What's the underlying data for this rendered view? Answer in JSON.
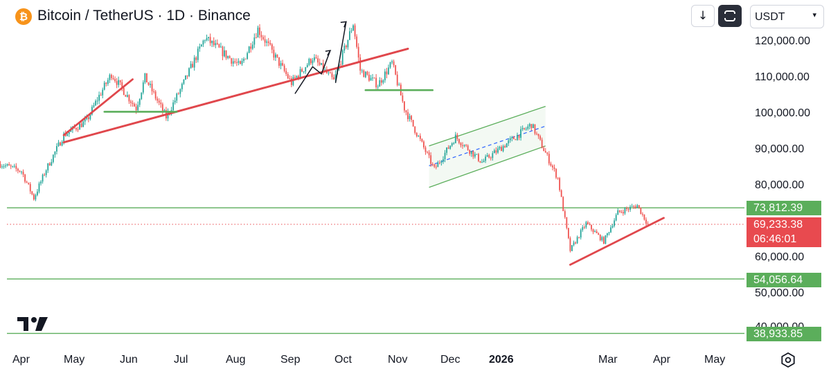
{
  "header": {
    "symbol_title": "Bitcoin / TetherUS · 1D · Binance",
    "logo_glyph": "₿",
    "download_icon": "↓",
    "currency": "USDT",
    "currency_arrow": "▾"
  },
  "price_axis": {
    "ticks": [
      "120,000.00",
      "110,000.00",
      "100,000.00",
      "90,000.00",
      "80,000.00",
      "60,000.00",
      "50,000.00"
    ],
    "hidden_tick": "40,000.00",
    "badges": {
      "resistance": "73,812.39",
      "support_1": "54,056.64",
      "support_2": "38,933.85"
    },
    "current_price": "69,233.38",
    "countdown": "06:46:01"
  },
  "time_axis": {
    "labels": [
      "Apr",
      "May",
      "Jun",
      "Jul",
      "Aug",
      "Sep",
      "Oct",
      "Nov",
      "Dec",
      "2026",
      "Mar",
      "Apr",
      "May"
    ]
  },
  "colors": {
    "up": "#26a69a",
    "down": "#ef5350",
    "trendline": "#e0474c",
    "horizontal_level": "#5bae5b",
    "channel": "#5bae5b",
    "channel_mid": "#2962ff",
    "current_price_line": "#e84a4f",
    "brand_btc": "#f7931a"
  },
  "chart_data": {
    "type": "candlestick",
    "symbol": "BTCUSDT",
    "interval": "1D",
    "close_path": [
      {
        "date": "2025-03-20",
        "close": 86000
      },
      {
        "date": "2025-04-01",
        "close": 84000
      },
      {
        "date": "2025-04-08",
        "close": 76500
      },
      {
        "date": "2025-04-15",
        "close": 84500
      },
      {
        "date": "2025-04-25",
        "close": 94000
      },
      {
        "date": "2025-05-08",
        "close": 98000
      },
      {
        "date": "2025-05-14",
        "close": 104000
      },
      {
        "date": "2025-05-22",
        "close": 111000
      },
      {
        "date": "2025-06-05",
        "close": 101500
      },
      {
        "date": "2025-06-10",
        "close": 110000
      },
      {
        "date": "2025-06-22",
        "close": 99000
      },
      {
        "date": "2025-07-01",
        "close": 107500
      },
      {
        "date": "2025-07-14",
        "close": 121000
      },
      {
        "date": "2025-08-03",
        "close": 113000
      },
      {
        "date": "2025-08-13",
        "close": 123500
      },
      {
        "date": "2025-09-01",
        "close": 108500
      },
      {
        "date": "2025-09-13",
        "close": 115500
      },
      {
        "date": "2025-09-25",
        "close": 109000
      },
      {
        "date": "2025-10-06",
        "close": 125000
      },
      {
        "date": "2025-10-10",
        "close": 112000
      },
      {
        "date": "2025-10-20",
        "close": 108000
      },
      {
        "date": "2025-10-28",
        "close": 114000
      },
      {
        "date": "2025-11-04",
        "close": 101500
      },
      {
        "date": "2025-11-21",
        "close": 84500
      },
      {
        "date": "2025-12-03",
        "close": 93500
      },
      {
        "date": "2025-12-18",
        "close": 86500
      },
      {
        "date": "2026-01-06",
        "close": 93500
      },
      {
        "date": "2026-01-15",
        "close": 97000
      },
      {
        "date": "2026-01-30",
        "close": 82000
      },
      {
        "date": "2026-02-06",
        "close": 62000
      },
      {
        "date": "2026-02-15",
        "close": 69500
      },
      {
        "date": "2026-02-25",
        "close": 64500
      },
      {
        "date": "2026-03-05",
        "close": 72500
      },
      {
        "date": "2026-03-16",
        "close": 74500
      },
      {
        "date": "2026-03-22",
        "close": 69233.38
      }
    ],
    "horizontal_levels": [
      73812.39,
      54056.64,
      38933.85
    ],
    "current_price": 69233.38,
    "y_range": [
      36000,
      126000
    ],
    "ytick_values": [
      120000,
      110000,
      100000,
      90000,
      80000,
      60000,
      50000
    ],
    "drawings": {
      "rising_trendline": {
        "from": {
          "date": "2025-04-25",
          "price": 92000
        },
        "to": {
          "date": "2025-11-06",
          "price": 118000
        }
      },
      "short_trendline": {
        "from": {
          "date": "2025-04-25",
          "price": 94000
        },
        "to": {
          "date": "2025-06-03",
          "price": 109500
        }
      },
      "june_support": {
        "from": {
          "date": "2025-05-18",
          "price": 100500
        },
        "to": {
          "date": "2025-06-28",
          "price": 100500
        }
      },
      "october_support": {
        "from": {
          "date": "2025-10-13",
          "price": 106500
        },
        "to": {
          "date": "2025-11-20",
          "price": 106500
        }
      },
      "bottom_trendline": {
        "from": {
          "date": "2026-02-06",
          "price": 58000
        },
        "to": {
          "date": "2026-03-31",
          "price": 71000
        }
      },
      "channel": {
        "lower": {
          "from": {
            "date": "2025-11-18",
            "price": 79500
          },
          "to": {
            "date": "2026-01-23",
            "price": 91000
          }
        },
        "upper": {
          "from": {
            "date": "2025-11-18",
            "price": 91000
          },
          "to": {
            "date": "2026-01-23",
            "price": 102000
          }
        },
        "mid": {
          "from": {
            "date": "2025-11-18",
            "price": 85500
          },
          "to": {
            "date": "2026-01-23",
            "price": 96500
          }
        }
      },
      "black_zigzag": [
        {
          "date": "2025-09-03",
          "price": 105500
        },
        {
          "date": "2025-09-13",
          "price": 113000
        },
        {
          "date": "2025-09-18",
          "price": 111000
        },
        {
          "date": "2025-09-23",
          "price": 117500
        }
      ],
      "black_arrow": [
        {
          "date": "2025-09-26",
          "price": 108500
        },
        {
          "date": "2025-10-02",
          "price": 125500
        }
      ]
    }
  }
}
